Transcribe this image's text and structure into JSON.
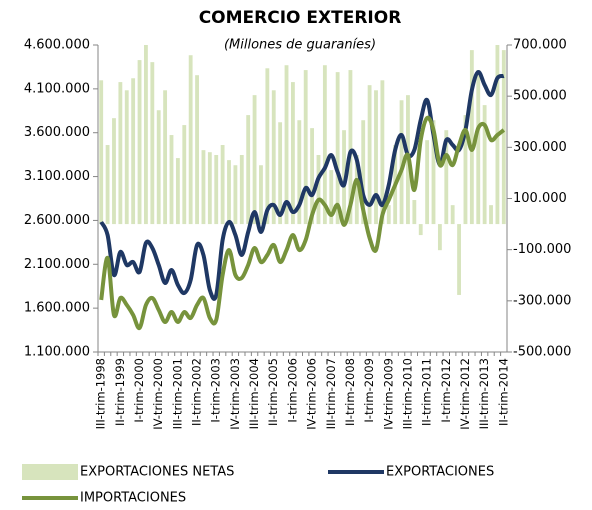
{
  "chart_data": {
    "type": "bar-line",
    "title": "COMERCIO EXTERIOR",
    "subtitle": "(Millones de guaraníes)",
    "categories": [
      "III-trim-1998",
      null,
      null,
      "II-trim-1999",
      null,
      null,
      "I-trim-2000",
      null,
      null,
      "IV-trim-2000",
      null,
      null,
      "III-trim-2001",
      null,
      null,
      "II-trim-2002",
      null,
      null,
      "I-trim-2003",
      null,
      null,
      "IV-trim-2003",
      null,
      null,
      "III-trim-2004",
      null,
      null,
      "II-trim-2005",
      null,
      null,
      "I-trim-2006",
      null,
      null,
      "IV-trim-2006",
      null,
      null,
      "III-trim-2007",
      null,
      null,
      "II-trim-2008",
      null,
      null,
      "I-trim-2009",
      null,
      null,
      "IV-trim-2009",
      null,
      null,
      "III-trim-2010",
      null,
      null,
      "II-trim-2011",
      null,
      null,
      "I-trim-2012",
      null,
      null,
      "IV-trim-2012",
      null,
      null,
      "III-trim-2013",
      null,
      null,
      "II-trim-2014"
    ],
    "series": [
      {
        "name": "EXPORTACIONES NETAS",
        "color": "#d7e4bd",
        "kind": "bar",
        "axis": "y2",
        "values": [
          562000,
          309000,
          414000,
          555000,
          523000,
          570000,
          641000,
          700000,
          633000,
          445000,
          523000,
          348000,
          258000,
          387000,
          660000,
          582000,
          289000,
          281000,
          270000,
          309000,
          250000,
          230000,
          270000,
          426000,
          504000,
          230000,
          609000,
          523000,
          398000,
          621000,
          555000,
          406000,
          602000,
          375000,
          270000,
          621000,
          211000,
          594000,
          367000,
          602000,
          270000,
          406000,
          543000,
          523000,
          562000,
          74000,
          309000,
          484000,
          504000,
          94000,
          -43000,
          328000,
          406000,
          -102000,
          367000,
          74000,
          -277000,
          426000,
          680000,
          602000,
          465000,
          74000,
          700000,
          680000
        ]
      },
      {
        "name": "EXPORTACIONES",
        "color": "#1f3864",
        "kind": "line",
        "values": [
          2582000,
          2434000,
          1978000,
          2240000,
          2092000,
          2126000,
          2012000,
          2343000,
          2286000,
          2092000,
          1887000,
          2035000,
          1864000,
          1773000,
          1921000,
          2320000,
          2206000,
          1807000,
          1750000,
          2377000,
          2582000,
          2434000,
          2206000,
          2468000,
          2696000,
          2468000,
          2719000,
          2776000,
          2662000,
          2810000,
          2696000,
          2776000,
          2970000,
          2890000,
          3084000,
          3198000,
          3346000,
          3152000,
          3004000,
          3380000,
          3289000,
          2890000,
          2776000,
          2890000,
          2776000,
          3004000,
          3403000,
          3574000,
          3346000,
          3403000,
          3745000,
          3973000,
          3574000,
          3232000,
          3517000,
          3460000,
          3403000,
          3631000,
          4087000,
          4292000,
          4144000,
          4030000,
          4224000,
          4246000
        ]
      },
      {
        "name": "IMPORTACIONES",
        "color": "#77933c",
        "kind": "line",
        "values": [
          1693000,
          2172000,
          1522000,
          1716000,
          1636000,
          1522000,
          1374000,
          1636000,
          1716000,
          1579000,
          1442000,
          1556000,
          1442000,
          1556000,
          1488000,
          1636000,
          1716000,
          1488000,
          1465000,
          1978000,
          2263000,
          1978000,
          1944000,
          2092000,
          2286000,
          2126000,
          2206000,
          2320000,
          2126000,
          2263000,
          2434000,
          2263000,
          2377000,
          2662000,
          2833000,
          2776000,
          2662000,
          2776000,
          2548000,
          2776000,
          3061000,
          2719000,
          2400000,
          2263000,
          2662000,
          2833000,
          3004000,
          3175000,
          3346000,
          2947000,
          3517000,
          3768000,
          3631000,
          3232000,
          3346000,
          3232000,
          3460000,
          3631000,
          3403000,
          3654000,
          3688000,
          3517000,
          3574000,
          3631000
        ]
      }
    ],
    "ylim": [
      1100000,
      4600000
    ],
    "yticks": [
      {
        "value": 1100000,
        "label": "1.100.000"
      },
      {
        "value": 1600000,
        "label": "1.600.000"
      },
      {
        "value": 2100000,
        "label": "2.100.000"
      },
      {
        "value": 2600000,
        "label": "2.600.000"
      },
      {
        "value": 3100000,
        "label": "3.100.000"
      },
      {
        "value": 3600000,
        "label": "3.600.000"
      },
      {
        "value": 4100000,
        "label": "4.100.000"
      },
      {
        "value": 4600000,
        "label": "4.600.000"
      }
    ],
    "y2lim": [
      -500000,
      700000
    ],
    "y2ticks": [
      {
        "value": -500000,
        "label": "-500.000"
      },
      {
        "value": -300000,
        "label": "-300.000"
      },
      {
        "value": -100000,
        "label": "-100.000"
      },
      {
        "value": 100000,
        "label": "100.000"
      },
      {
        "value": 300000,
        "label": "300.000"
      },
      {
        "value": 500000,
        "label": "500.000"
      },
      {
        "value": 700000,
        "label": "700.000"
      }
    ],
    "grid": false
  }
}
